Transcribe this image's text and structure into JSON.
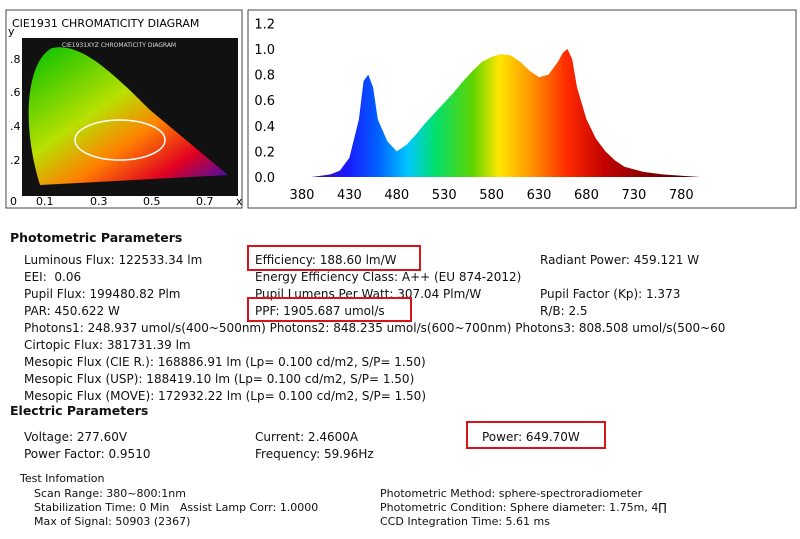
{
  "cie": {
    "title": "CIE1931 CHROMATICITY DIAGRAM",
    "inner_title": "CIE1931XYZ CHROMATICITY DIAGRAM",
    "y_label": "y",
    "x_label": "x",
    "y_ticks": [
      ".8",
      ".6",
      ".4",
      ".2"
    ],
    "x_ticks": [
      "0",
      "0.1",
      "0.3",
      "0.5",
      "0.7"
    ]
  },
  "chart_data": {
    "type": "area",
    "x": [
      380,
      390,
      400,
      410,
      420,
      430,
      440,
      445,
      450,
      455,
      460,
      470,
      480,
      490,
      500,
      510,
      520,
      530,
      540,
      550,
      560,
      570,
      580,
      590,
      600,
      610,
      620,
      630,
      640,
      650,
      655,
      660,
      665,
      670,
      680,
      690,
      700,
      710,
      720,
      740,
      760,
      780,
      800
    ],
    "values": [
      0,
      0,
      0.01,
      0.02,
      0.05,
      0.15,
      0.45,
      0.75,
      0.8,
      0.7,
      0.45,
      0.28,
      0.2,
      0.25,
      0.33,
      0.42,
      0.5,
      0.58,
      0.66,
      0.75,
      0.83,
      0.9,
      0.94,
      0.96,
      0.95,
      0.9,
      0.83,
      0.78,
      0.8,
      0.9,
      0.97,
      1.0,
      0.92,
      0.7,
      0.45,
      0.3,
      0.2,
      0.13,
      0.08,
      0.04,
      0.02,
      0.01,
      0
    ],
    "xlim": [
      360,
      805
    ],
    "ylim": [
      0,
      1.25
    ],
    "xticks": [
      380,
      430,
      480,
      530,
      580,
      630,
      680,
      730,
      780
    ],
    "yticks": [
      {
        "value": 0,
        "label": "0.0"
      },
      0.2,
      0.4,
      0.6,
      0.8,
      {
        "value": 1,
        "label": "1.0"
      },
      1.2
    ]
  },
  "photometric": {
    "title": "Photometric Parameters",
    "rows": [
      [
        "Luminous Flux: 122533.34 lm",
        "Efficiency: 188.60 lm/W",
        "Radiant Power: 459.121 W"
      ],
      [
        "EEI:  0.06",
        "Energy Efficiency Class: A++ (EU 874-2012)"
      ],
      [
        "Pupil Flux: 199480.82 Plm",
        "Pupil Lumens Per Watt: 307.04 Plm/W",
        "Pupil Factor (Kp): 1.373"
      ],
      [
        "PAR: 450.622 W",
        "PPF: 1905.687 umol/s",
        "R/B: 2.5"
      ],
      [
        "Photons1: 248.937 umol/s(400~500nm) Photons2: 848.235 umol/s(600~700nm) Photons3: 808.508 umol/s(500~60"
      ],
      [
        "Cirtopic Flux: 381731.39 lm"
      ],
      [
        "Mesopic Flux (CIE R.): 168886.91 lm (Lp= 0.100 cd/m2, S/P= 1.50)"
      ],
      [
        "Mesopic Flux (USP): 188419.10 lm (Lp= 0.100 cd/m2, S/P= 1.50)"
      ],
      [
        "Mesopic Flux (MOVE): 172932.22 lm (Lp= 0.100 cd/m2, S/P= 1.50)"
      ]
    ]
  },
  "electric": {
    "title": "Electric Parameters",
    "rows": [
      [
        "Voltage: 277.60V",
        "Current: 2.4600A",
        "Power: 649.70W"
      ],
      [
        "Power Factor: 0.9510",
        "Frequency: 59.96Hz"
      ]
    ]
  },
  "test_info": {
    "title": "Test Infomation",
    "rows": [
      [
        "Scan Range: 380~800:1nm",
        "Photometric Method: sphere-spectroradiometer"
      ],
      [
        "Stabilization Time: 0 Min   Assist Lamp Corr: 1.0000",
        "Photometric Condition: Sphere diameter: 1.75m, 4∏"
      ],
      [
        "Max of Signal: 50903 (2367)",
        "CCD Integration Time: 5.61 ms"
      ]
    ]
  }
}
